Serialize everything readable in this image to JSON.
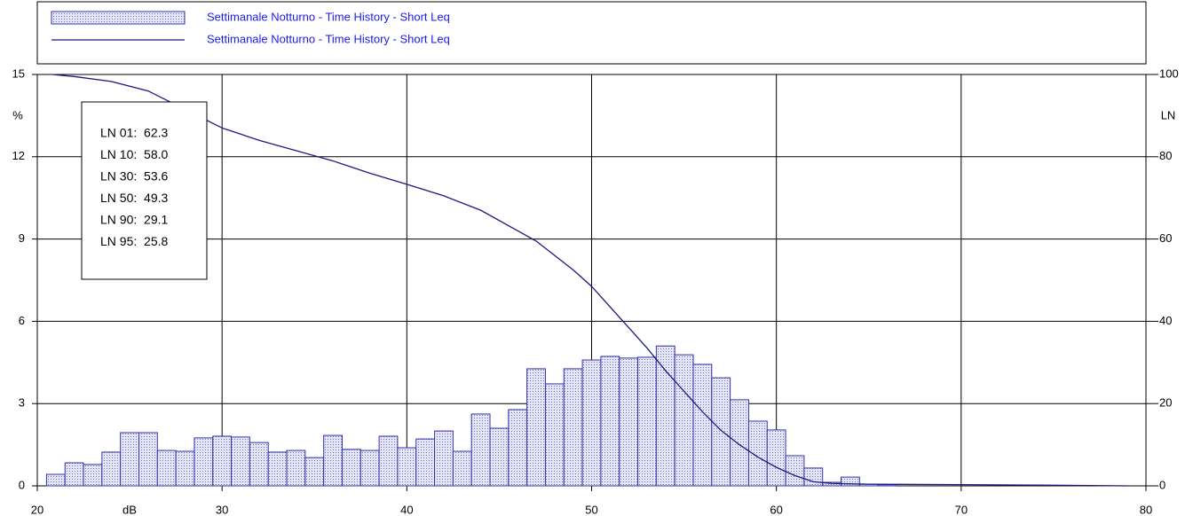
{
  "chart_data": {
    "type": "histogram",
    "xlim": [
      20,
      80
    ],
    "xticks": [
      20,
      30,
      40,
      50,
      60,
      70,
      80
    ],
    "ylim": [
      0,
      15
    ],
    "yticks": [
      0,
      3,
      6,
      9,
      12,
      15
    ],
    "y2lim": [
      0,
      100
    ],
    "y2ticks": [
      0,
      20,
      40,
      60,
      80,
      100
    ],
    "xlabel": "dB",
    "ylabel": "%",
    "y2label": "LN",
    "grid": true,
    "legend": "top",
    "annotations": [
      "LN 01:  62.3",
      "LN 10:  58.0",
      "LN 30:  53.6",
      "LN 50:  49.3",
      "LN 90:  29.1",
      "LN 95:  25.8"
    ],
    "bins": [
      20.5,
      21.5,
      22.5,
      23.5,
      24.5,
      25.5,
      26.5,
      27.5,
      28.5,
      29.5,
      30.5,
      31.5,
      32.5,
      33.5,
      34.5,
      35.5,
      36.5,
      37.5,
      38.5,
      39.5,
      40.5,
      41.5,
      42.5,
      43.5,
      44.5,
      45.5,
      46.5,
      47.5,
      48.5,
      49.5,
      50.5,
      51.5,
      52.5,
      53.5,
      54.5,
      55.5,
      56.5,
      57.5,
      58.5,
      59.5,
      60.5,
      61.5,
      62.5,
      63.5,
      64.5,
      65.5,
      66.5
    ],
    "series": [
      {
        "name": "Settimanale Notturno - Time History - Short Leq",
        "color": "#3333aa",
        "values": [
          0.42,
          0.84,
          0.78,
          1.23,
          1.94,
          1.94,
          1.29,
          1.26,
          1.75,
          1.81,
          1.78,
          1.58,
          1.23,
          1.29,
          1.03,
          1.84,
          1.33,
          1.29,
          1.81,
          1.39,
          1.71,
          2.0,
          1.26,
          2.62,
          2.1,
          2.78,
          4.27,
          3.72,
          4.27,
          4.59,
          4.72,
          4.66,
          4.69,
          5.1,
          4.78,
          4.43,
          3.94,
          3.14,
          2.36,
          2.04,
          1.1,
          0.65,
          0.13,
          0.32,
          0.06,
          0.04
        ]
      },
      {
        "name": "Settimanale Notturno - Time History - Short Leq",
        "color": "#1a1a80",
        "axis": "y2",
        "x": [
          20.8,
          22,
          24,
          26,
          28,
          30,
          32,
          34,
          36,
          38,
          40,
          42,
          44,
          46,
          47,
          48,
          49,
          50,
          51,
          52,
          53,
          54,
          55,
          56,
          57,
          58,
          59,
          60,
          61,
          62,
          63,
          65,
          70,
          75,
          79
        ],
        "values": [
          100,
          99.5,
          98.3,
          96,
          91.5,
          87,
          84,
          81.5,
          79,
          76,
          73.3,
          70.5,
          67,
          62,
          59.5,
          56,
          52.5,
          48.5,
          43.5,
          38.5,
          33.5,
          28,
          23,
          18,
          13.5,
          10,
          7,
          4.5,
          2.5,
          1,
          0.6,
          0.4,
          0.3,
          0.15,
          0
        ]
      }
    ]
  }
}
